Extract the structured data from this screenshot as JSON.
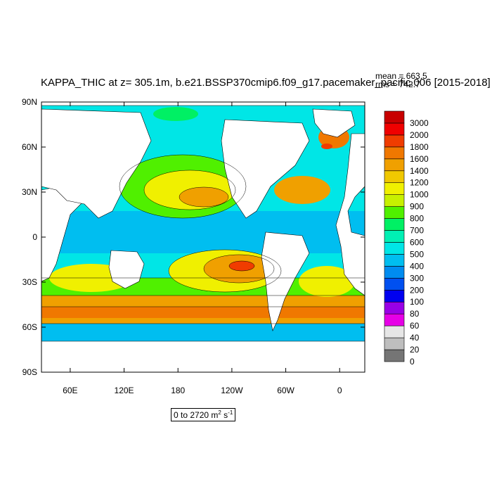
{
  "map": {
    "title": "KAPPA_THIC at z= 305.1m, b.e21.BSSP370cmip6.f09_g17.pacemaker_pacific.006 [2015-2018]",
    "stats": {
      "mean_label": "mean = 663.5",
      "rms_label": "rms = 742.7"
    },
    "range_label": {
      "prefix": "0 to 2720 m",
      "unit_power": "2",
      "suffix": " s",
      "time_power": "-1"
    },
    "y_ticks": [
      "90N",
      "60N",
      "30N",
      "0",
      "30S",
      "60S",
      "90S"
    ],
    "x_ticks": [
      "60E",
      "120E",
      "180",
      "120W",
      "60W",
      "0"
    ],
    "colorbar": {
      "levels": [
        "0",
        "20",
        "40",
        "60",
        "80",
        "100",
        "200",
        "300",
        "400",
        "500",
        "600",
        "700",
        "800",
        "900",
        "1000",
        "1200",
        "1400",
        "1600",
        "1800",
        "2000",
        "3000"
      ],
      "colors": [
        "#757575",
        "#BEBEBE",
        "#E6E6E6",
        "#E600E6",
        "#9900E6",
        "#0000F0",
        "#0050F0",
        "#008CF0",
        "#00BEF0",
        "#00E6E6",
        "#00F0B4",
        "#00F064",
        "#50F000",
        "#C8F000",
        "#F0F000",
        "#F0C800",
        "#F0A000",
        "#F07800",
        "#F03C00",
        "#F00000",
        "#C80000"
      ]
    }
  }
}
